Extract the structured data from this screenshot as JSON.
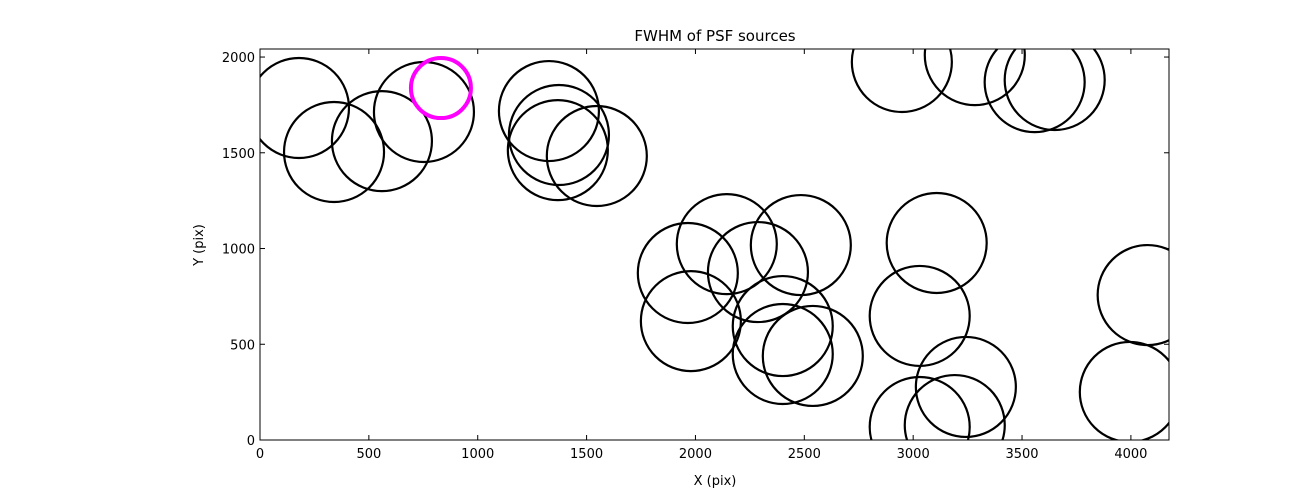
{
  "chart_data": {
    "type": "scatter",
    "title": "FWHM of PSF sources",
    "x_label": "X (pix)",
    "y_label": "Y (pix)",
    "xlim": [
      0,
      4175
    ],
    "ylim": [
      0,
      2042
    ],
    "xticks": [
      0,
      500,
      1000,
      1500,
      2000,
      2500,
      3000,
      3500,
      4000
    ],
    "yticks": [
      0,
      500,
      1000,
      1500,
      2000
    ],
    "series": [
      {
        "color": "#000000",
        "x": [
          179,
          340,
          560,
          753,
          1327,
          1373,
          1368,
          1547,
          2948,
          3283,
          3558,
          3650,
          2144,
          2484,
          1965,
          2287,
          1979,
          2401,
          2401,
          2539,
          3108,
          3030,
          3242,
          3030,
          3191,
          4077,
          3995
        ],
        "values": [
          1734,
          1504,
          1561,
          1713,
          1718,
          1593,
          1514,
          1483,
          1974,
          2010,
          1869,
          1880,
          1023,
          1018,
          872,
          877,
          621,
          595,
          449,
          439,
          1029,
          648,
          277,
          68,
          78,
          757,
          251
        ]
      },
      {
        "color": "#ff00ff",
        "x": [
          831
        ],
        "values": [
          1838
        ]
      }
    ]
  }
}
